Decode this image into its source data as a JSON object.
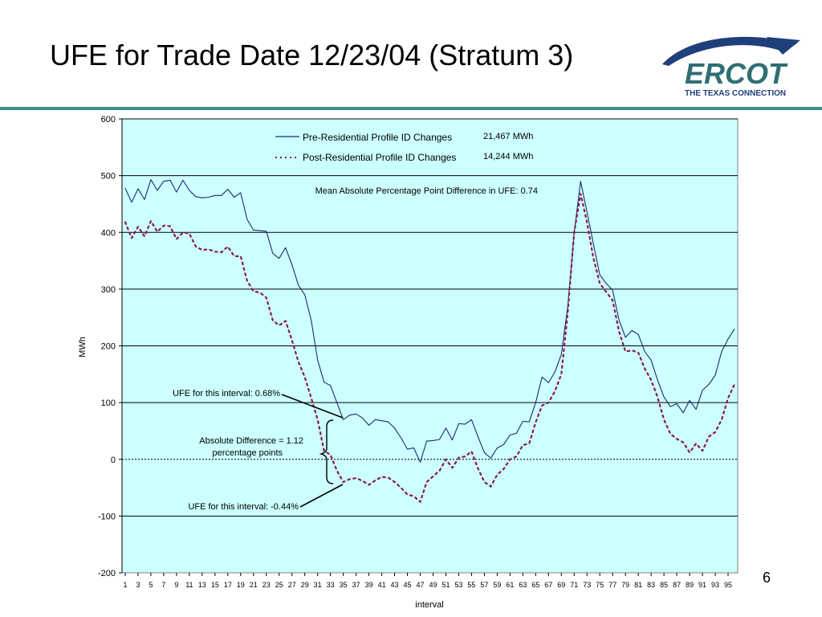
{
  "slide": {
    "title": "UFE for Trade Date 12/23/04 (Stratum 3)",
    "page_number": "6",
    "logo": {
      "name": "ERCOT",
      "tagline": "THE TEXAS CONNECTION",
      "text_color": "#2f6f73",
      "swoosh_color": "#1f3f7a"
    },
    "rule_color": "#3f8f8f"
  },
  "chart_data": {
    "type": "line",
    "xlabel": "interval",
    "ylabel": "MWh",
    "ylim": [
      -200,
      600
    ],
    "yticks": [
      -200,
      -100,
      0,
      100,
      200,
      300,
      400,
      500,
      600
    ],
    "xticks": [
      1,
      3,
      5,
      7,
      9,
      11,
      13,
      15,
      17,
      19,
      21,
      23,
      25,
      27,
      29,
      31,
      33,
      35,
      37,
      39,
      41,
      43,
      45,
      47,
      49,
      51,
      53,
      55,
      57,
      59,
      61,
      63,
      65,
      67,
      69,
      71,
      73,
      75,
      77,
      79,
      81,
      83,
      85,
      87,
      89,
      91,
      93,
      95
    ],
    "x_range": [
      1,
      96
    ],
    "plot_background": "#ccffff",
    "grid": true,
    "legend_position": "top-center",
    "series": [
      {
        "name": "Pre-Residential Profile ID Changes",
        "total": "21,467 MWh",
        "style": "solid",
        "color": "#1f2a6e",
        "values": [
          478,
          453,
          477,
          458,
          493,
          474,
          490,
          492,
          471,
          492,
          474,
          463,
          461,
          462,
          465,
          465,
          476,
          462,
          470,
          423,
          404,
          403,
          402,
          363,
          354,
          373,
          343,
          307,
          290,
          245,
          175,
          136,
          130,
          100,
          70,
          78,
          80,
          73,
          60,
          70,
          68,
          66,
          55,
          38,
          18,
          20,
          -5,
          32,
          33,
          35,
          55,
          34,
          63,
          62,
          70,
          40,
          12,
          2,
          20,
          26,
          43,
          46,
          67,
          66,
          100,
          145,
          135,
          154,
          185,
          270,
          400,
          490,
          436,
          380,
          325,
          310,
          298,
          245,
          215,
          227,
          220,
          190,
          175,
          140,
          110,
          93,
          98,
          82,
          104,
          88,
          122,
          132,
          148,
          190,
          212,
          230
        ]
      },
      {
        "name": "Post-Residential Profile ID Changes",
        "total": "14,244 MWh",
        "style": "dotted",
        "color": "#8b1a4a",
        "values": [
          418,
          390,
          410,
          393,
          420,
          401,
          412,
          411,
          388,
          400,
          398,
          375,
          369,
          370,
          366,
          365,
          375,
          358,
          358,
          315,
          296,
          294,
          285,
          245,
          236,
          244,
          210,
          172,
          145,
          108,
          70,
          15,
          8,
          -20,
          -40,
          -35,
          -33,
          -38,
          -45,
          -37,
          -31,
          -32,
          -40,
          -50,
          -62,
          -65,
          -75,
          -40,
          -30,
          -20,
          0,
          -15,
          3,
          5,
          14,
          -16,
          -40,
          -48,
          -27,
          -17,
          0,
          5,
          25,
          28,
          65,
          95,
          100,
          120,
          150,
          260,
          400,
          468,
          418,
          355,
          310,
          295,
          280,
          225,
          190,
          192,
          188,
          160,
          140,
          110,
          70,
          45,
          36,
          30,
          12,
          28,
          15,
          40,
          48,
          70,
          108,
          132
        ]
      }
    ],
    "annotations": {
      "mean_diff": "Mean Absolute Percentage Point Difference in UFE:  0.74",
      "ufe_high": "UFE for this interval:  0.68%",
      "ufe_low": "UFE for this interval:  -0.44%",
      "abs_diff_line1": "Absolute Difference = 1.12",
      "abs_diff_line2": "percentage points",
      "highlight_interval": 35
    }
  }
}
